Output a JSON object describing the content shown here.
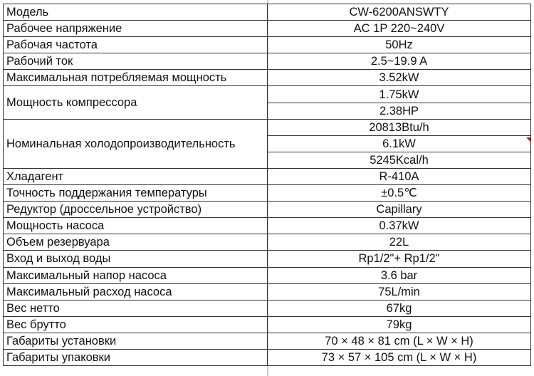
{
  "rows": [
    {
      "label": "Модель",
      "values": [
        "CW-6200ANSWTY"
      ]
    },
    {
      "label": "Рабочее напряжение",
      "values": [
        "AC 1P 220~240V"
      ]
    },
    {
      "label": "Рабочая частота",
      "values": [
        "50Hz"
      ]
    },
    {
      "label": "Рабочий ток",
      "values": [
        "2.5~19.9 A"
      ]
    },
    {
      "label": "Максимальная потребляемая мощность",
      "values": [
        "3.52kW"
      ]
    },
    {
      "label": "Мощность компрессора",
      "values": [
        "1.75kW",
        "2.38HP"
      ]
    },
    {
      "label": "Номинальная холодопроизводительность",
      "values": [
        "20813Btu/h",
        "6.1kW",
        "5245Kcal/h"
      ]
    },
    {
      "label": "Хладагент",
      "values": [
        "R-410A"
      ]
    },
    {
      "label": "Точность поддержания температуры",
      "values": [
        "±0.5℃"
      ]
    },
    {
      "label": "Редуктор (дроссельное устройство)",
      "values": [
        "Capillary"
      ]
    },
    {
      "label": "Мощность насоса",
      "values": [
        "0.37kW"
      ]
    },
    {
      "label": "Объем резервуара",
      "values": [
        "22L"
      ]
    },
    {
      "label": "Вход и выход воды",
      "values": [
        "Rp1/2\"+ Rp1/2\""
      ]
    },
    {
      "label": "Максимальный напор насоса",
      "values": [
        "3.6 bar"
      ]
    },
    {
      "label": "Максимальный расход насоса",
      "values": [
        "75L/min"
      ]
    },
    {
      "label": "Вес нетто",
      "values": [
        "67kg"
      ]
    },
    {
      "label": "Вес брутто",
      "values": [
        "79kg"
      ]
    },
    {
      "label": "Габариты установки",
      "values": [
        "70 × 48 × 81 cm (L × W × H)"
      ]
    },
    {
      "label": "Габариты упаковки",
      "values": [
        "73 × 57 × 105 cm (L × W × H)"
      ]
    }
  ],
  "colors": {
    "border": "#333333",
    "divider": "#c8c8c8",
    "comment_marker": "#e00000"
  }
}
